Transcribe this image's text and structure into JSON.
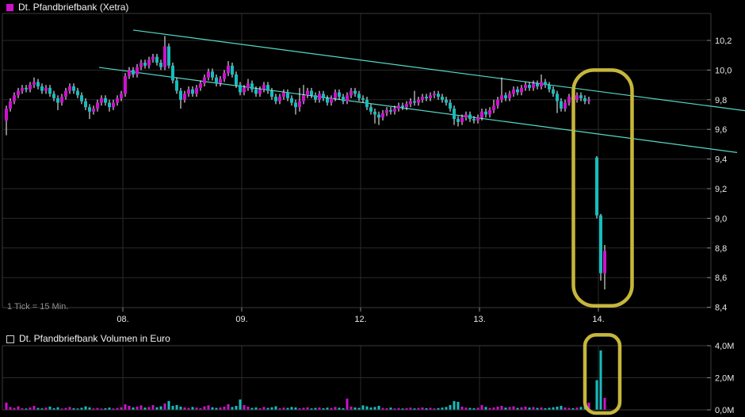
{
  "price_panel": {
    "title": "Dt. Pfandbriefbank (Xetra)",
    "footnote": "1 Tick = 15 Min.",
    "y_axis_labels": [
      "10,2",
      "10,0",
      "9,8",
      "9,6",
      "9,4",
      "9,2",
      "9,0",
      "8,8",
      "8,6",
      "8,4"
    ],
    "x_axis_labels": [
      "08.",
      "09.",
      "12.",
      "13.",
      "14."
    ]
  },
  "volume_panel": {
    "title": "Dt. Pfandbriefbank Volumen in Euro",
    "y_axis_labels": [
      "4,0M",
      "2,0M",
      "0,0M"
    ]
  },
  "colors": {
    "background": "#000000",
    "up": "#cf10cf",
    "down": "#16bdbd",
    "wick": "#ffffff",
    "grid": "#2a2a2a",
    "border": "#3a3a3a",
    "tick": "#888888",
    "axis_text": "#e8e8e8",
    "muted_text": "#8f8f8f",
    "trendline": "#55d8c8",
    "highlight": "#c6b63c"
  },
  "chart_data": {
    "type": "candlestick_with_volume",
    "title": "Dt. Pfandbriefbank (Xetra)",
    "interval": "1 Tick = 15 Min.",
    "x_day_labels": [
      "08.",
      "09.",
      "12.",
      "13.",
      "14."
    ],
    "price_axis": {
      "min": 8.4,
      "max": 10.38,
      "tick_step": 0.2,
      "tick_values": [
        10.2,
        10.0,
        9.8,
        9.6,
        9.4,
        9.2,
        9.0,
        8.8,
        8.6,
        8.4
      ]
    },
    "volume_axis": {
      "min": 0.0,
      "max": 4.0,
      "tick_values": [
        4.0,
        2.0,
        0.0
      ],
      "unit": "M"
    },
    "trend_channel": {
      "upper": {
        "i1": 32.0,
        "p1": 10.27,
        "i2": 186.4,
        "p2": 9.726
      },
      "lower": {
        "i1": 23.4,
        "p1": 10.018,
        "i2": 184.4,
        "p2": 9.444
      }
    },
    "annotations": [
      {
        "name": "crash-highlight-price",
        "panel": "price",
        "i1": 143.1,
        "i2": 157.9,
        "p1": 10.0,
        "p2": 8.41
      },
      {
        "name": "crash-highlight-volume",
        "panel": "volume",
        "i1": 146.0,
        "i2": 154.8,
        "v1": 4.67,
        "v2": -0.2
      }
    ],
    "candles_format": [
      "open",
      "high",
      "low",
      "close",
      "volume_millions"
    ],
    "candles": [
      [
        9.66,
        9.76,
        9.56,
        9.74,
        0.45
      ],
      [
        9.74,
        9.81,
        9.72,
        9.79,
        0.18
      ],
      [
        9.79,
        9.85,
        9.77,
        9.83,
        0.12
      ],
      [
        9.83,
        9.88,
        9.81,
        9.86,
        0.22
      ],
      [
        9.86,
        9.9,
        9.84,
        9.88,
        0.1
      ],
      [
        9.88,
        9.9,
        9.85,
        9.87,
        0.08
      ],
      [
        9.87,
        9.92,
        9.85,
        9.9,
        0.15
      ],
      [
        9.9,
        9.95,
        9.88,
        9.92,
        0.25
      ],
      [
        9.92,
        9.94,
        9.87,
        9.89,
        0.12
      ],
      [
        9.89,
        9.91,
        9.84,
        9.86,
        0.09
      ],
      [
        9.86,
        9.9,
        9.84,
        9.88,
        0.14
      ],
      [
        9.88,
        9.9,
        9.82,
        9.84,
        0.2
      ],
      [
        9.84,
        9.86,
        9.79,
        9.81,
        0.1
      ],
      [
        9.81,
        9.83,
        9.73,
        9.78,
        0.16
      ],
      [
        9.78,
        9.84,
        9.76,
        9.82,
        0.08
      ],
      [
        9.82,
        9.88,
        9.8,
        9.86,
        0.12
      ],
      [
        9.86,
        9.91,
        9.84,
        9.89,
        0.18
      ],
      [
        9.89,
        9.91,
        9.84,
        9.86,
        0.1
      ],
      [
        9.86,
        9.88,
        9.81,
        9.83,
        0.07
      ],
      [
        9.83,
        9.85,
        9.77,
        9.79,
        0.13
      ],
      [
        9.79,
        9.81,
        9.73,
        9.75,
        0.22
      ],
      [
        9.75,
        9.77,
        9.67,
        9.72,
        0.15
      ],
      [
        9.72,
        9.76,
        9.7,
        9.74,
        0.09
      ],
      [
        9.74,
        9.8,
        9.72,
        9.78,
        0.12
      ],
      [
        9.78,
        9.83,
        9.76,
        9.81,
        0.08
      ],
      [
        9.81,
        9.83,
        9.76,
        9.78,
        0.1
      ],
      [
        9.78,
        9.8,
        9.72,
        9.75,
        0.14
      ],
      [
        9.75,
        9.8,
        9.73,
        9.78,
        0.09
      ],
      [
        9.78,
        9.83,
        9.76,
        9.81,
        0.12
      ],
      [
        9.81,
        9.86,
        9.79,
        9.84,
        0.16
      ],
      [
        9.84,
        9.98,
        9.82,
        9.96,
        0.35
      ],
      [
        9.96,
        10.02,
        9.94,
        10.0,
        0.25
      ],
      [
        10.0,
        10.02,
        9.95,
        9.97,
        0.15
      ],
      [
        9.97,
        10.04,
        9.95,
        10.02,
        0.2
      ],
      [
        10.02,
        10.07,
        10.0,
        10.05,
        0.28
      ],
      [
        10.05,
        10.07,
        10.01,
        10.03,
        0.14
      ],
      [
        10.03,
        10.09,
        10.01,
        10.07,
        0.18
      ],
      [
        10.07,
        10.11,
        10.05,
        10.09,
        0.3
      ],
      [
        10.09,
        10.11,
        10.03,
        10.05,
        0.16
      ],
      [
        10.05,
        10.07,
        10.0,
        10.02,
        0.22
      ],
      [
        10.02,
        10.23,
        10.0,
        10.16,
        0.4
      ],
      [
        10.16,
        10.18,
        10.01,
        10.03,
        0.55
      ],
      [
        10.03,
        10.05,
        9.91,
        9.93,
        0.25
      ],
      [
        9.93,
        9.95,
        9.84,
        9.86,
        0.3
      ],
      [
        9.86,
        9.88,
        9.74,
        9.8,
        0.2
      ],
      [
        9.8,
        9.86,
        9.78,
        9.84,
        0.15
      ],
      [
        9.84,
        9.89,
        9.82,
        9.87,
        0.12
      ],
      [
        9.87,
        9.89,
        9.82,
        9.84,
        0.18
      ],
      [
        9.84,
        9.9,
        9.82,
        9.88,
        0.14
      ],
      [
        9.88,
        9.93,
        9.86,
        9.91,
        0.1
      ],
      [
        9.91,
        9.97,
        9.89,
        9.95,
        0.22
      ],
      [
        9.95,
        10.01,
        9.93,
        9.99,
        0.28
      ],
      [
        9.99,
        10.01,
        9.93,
        9.95,
        0.16
      ],
      [
        9.95,
        9.97,
        9.89,
        9.91,
        0.12
      ],
      [
        9.91,
        9.96,
        9.89,
        9.94,
        0.15
      ],
      [
        9.94,
        10.0,
        9.92,
        9.98,
        0.2
      ],
      [
        9.98,
        10.06,
        9.96,
        10.03,
        0.35
      ],
      [
        10.03,
        10.05,
        9.95,
        9.97,
        0.18
      ],
      [
        9.97,
        9.99,
        9.88,
        9.9,
        0.25
      ],
      [
        9.9,
        9.92,
        9.83,
        9.85,
        0.65
      ],
      [
        9.85,
        9.9,
        9.83,
        9.88,
        0.3
      ],
      [
        9.88,
        9.94,
        9.86,
        9.91,
        0.2
      ],
      [
        9.91,
        9.93,
        9.85,
        9.87,
        0.12
      ],
      [
        9.87,
        9.89,
        9.82,
        9.84,
        0.15
      ],
      [
        9.84,
        9.89,
        9.82,
        9.87,
        0.1
      ],
      [
        9.87,
        9.92,
        9.85,
        9.9,
        0.18
      ],
      [
        9.9,
        9.92,
        9.84,
        9.86,
        0.12
      ],
      [
        9.86,
        9.88,
        9.8,
        9.82,
        0.16
      ],
      [
        9.82,
        9.84,
        9.77,
        9.79,
        0.22
      ],
      [
        9.79,
        9.84,
        9.77,
        9.82,
        0.1
      ],
      [
        9.82,
        9.87,
        9.8,
        9.85,
        0.14
      ],
      [
        9.85,
        9.87,
        9.79,
        9.81,
        0.12
      ],
      [
        9.81,
        9.83,
        9.76,
        9.78,
        0.18
      ],
      [
        9.78,
        9.8,
        9.7,
        9.75,
        0.15
      ],
      [
        9.75,
        9.88,
        9.72,
        9.79,
        0.1
      ],
      [
        9.79,
        9.9,
        9.77,
        9.83,
        0.13
      ],
      [
        9.83,
        9.88,
        9.81,
        9.86,
        0.16
      ],
      [
        9.86,
        9.88,
        9.81,
        9.83,
        0.09
      ],
      [
        9.83,
        9.85,
        9.78,
        9.8,
        0.12
      ],
      [
        9.8,
        9.86,
        9.78,
        9.84,
        0.15
      ],
      [
        9.84,
        9.86,
        9.79,
        9.81,
        0.1
      ],
      [
        9.81,
        9.83,
        9.76,
        9.78,
        0.14
      ],
      [
        9.78,
        9.83,
        9.76,
        9.81,
        0.12
      ],
      [
        9.81,
        9.87,
        9.79,
        9.85,
        0.18
      ],
      [
        9.85,
        9.87,
        9.8,
        9.82,
        0.13
      ],
      [
        9.82,
        9.84,
        9.77,
        9.79,
        0.1
      ],
      [
        9.79,
        9.85,
        9.77,
        9.83,
        0.7
      ],
      [
        9.83,
        9.88,
        9.81,
        9.86,
        0.2
      ],
      [
        9.86,
        9.88,
        9.82,
        9.84,
        0.15
      ],
      [
        9.84,
        9.86,
        9.79,
        9.81,
        0.12
      ],
      [
        9.81,
        9.83,
        9.78,
        9.8,
        0.28
      ],
      [
        9.8,
        9.82,
        9.73,
        9.75,
        0.22
      ],
      [
        9.75,
        9.77,
        9.7,
        9.72,
        0.15
      ],
      [
        9.72,
        9.74,
        9.64,
        9.7,
        0.18
      ],
      [
        9.7,
        9.72,
        9.63,
        9.68,
        0.25
      ],
      [
        9.68,
        9.73,
        9.66,
        9.71,
        0.12
      ],
      [
        9.71,
        9.75,
        9.69,
        9.73,
        0.1
      ],
      [
        9.73,
        9.75,
        9.7,
        9.72,
        0.14
      ],
      [
        9.72,
        9.76,
        9.7,
        9.74,
        0.09
      ],
      [
        9.74,
        9.78,
        9.72,
        9.76,
        0.12
      ],
      [
        9.76,
        9.78,
        9.73,
        9.75,
        0.08
      ],
      [
        9.75,
        9.79,
        9.73,
        9.77,
        0.11
      ],
      [
        9.77,
        9.81,
        9.75,
        9.79,
        0.14
      ],
      [
        9.79,
        9.86,
        9.76,
        9.78,
        0.09
      ],
      [
        9.78,
        9.82,
        9.76,
        9.8,
        0.12
      ],
      [
        9.8,
        9.84,
        9.78,
        9.82,
        0.15
      ],
      [
        9.82,
        9.84,
        9.79,
        9.81,
        0.1
      ],
      [
        9.81,
        9.85,
        9.79,
        9.83,
        0.13
      ],
      [
        9.83,
        9.86,
        9.81,
        9.84,
        0.09
      ],
      [
        9.84,
        9.86,
        9.8,
        9.82,
        0.11
      ],
      [
        9.82,
        9.84,
        9.78,
        9.8,
        0.14
      ],
      [
        9.8,
        9.82,
        9.76,
        9.78,
        0.18
      ],
      [
        9.78,
        9.8,
        9.72,
        9.74,
        0.3
      ],
      [
        9.74,
        9.76,
        9.63,
        9.67,
        0.55
      ],
      [
        9.67,
        9.69,
        9.62,
        9.65,
        0.5
      ],
      [
        9.65,
        9.7,
        9.63,
        9.68,
        0.2
      ],
      [
        9.68,
        9.72,
        9.66,
        9.7,
        0.14
      ],
      [
        9.7,
        9.72,
        9.65,
        9.67,
        0.12
      ],
      [
        9.67,
        9.69,
        9.64,
        9.66,
        0.1
      ],
      [
        9.66,
        9.7,
        9.64,
        9.68,
        0.13
      ],
      [
        9.68,
        9.74,
        9.66,
        9.72,
        0.3
      ],
      [
        9.72,
        9.74,
        9.68,
        9.7,
        0.18
      ],
      [
        9.7,
        9.75,
        9.68,
        9.73,
        0.12
      ],
      [
        9.73,
        9.8,
        9.71,
        9.76,
        0.15
      ],
      [
        9.76,
        9.82,
        9.74,
        9.8,
        0.2
      ],
      [
        9.8,
        9.95,
        9.78,
        9.83,
        0.25
      ],
      [
        9.83,
        9.85,
        9.79,
        9.81,
        0.14
      ],
      [
        9.81,
        9.86,
        9.79,
        9.84,
        0.18
      ],
      [
        9.84,
        9.89,
        9.82,
        9.87,
        0.22
      ],
      [
        9.87,
        9.89,
        9.83,
        9.85,
        0.12
      ],
      [
        9.85,
        9.9,
        9.83,
        9.88,
        0.16
      ],
      [
        9.88,
        9.92,
        9.86,
        9.9,
        0.2
      ],
      [
        9.9,
        9.92,
        9.86,
        9.88,
        0.14
      ],
      [
        9.88,
        9.93,
        9.86,
        9.91,
        0.18
      ],
      [
        9.91,
        9.93,
        9.87,
        9.89,
        0.12
      ],
      [
        9.89,
        9.97,
        9.87,
        9.92,
        0.15
      ],
      [
        9.92,
        9.94,
        9.88,
        9.9,
        0.1
      ],
      [
        9.9,
        9.92,
        9.85,
        9.87,
        0.13
      ],
      [
        9.87,
        9.89,
        9.82,
        9.84,
        0.16
      ],
      [
        9.84,
        9.86,
        9.71,
        9.79,
        0.2
      ],
      [
        9.79,
        9.81,
        9.72,
        9.74,
        0.25
      ],
      [
        9.74,
        9.8,
        9.72,
        9.78,
        0.15
      ],
      [
        9.78,
        9.84,
        9.76,
        9.82,
        0.12
      ],
      [
        9.82,
        9.84,
        9.78,
        9.8,
        0.1
      ],
      [
        9.8,
        9.85,
        9.78,
        9.83,
        0.14
      ],
      [
        9.83,
        9.85,
        9.79,
        9.81,
        0.18
      ],
      [
        9.81,
        9.83,
        9.77,
        9.79,
        0.3
      ],
      [
        9.79,
        9.82,
        9.77,
        9.8,
        0.45
      ],
      null,
      [
        9.41,
        9.42,
        9.0,
        9.02,
        1.85
      ],
      [
        9.02,
        9.03,
        8.58,
        8.63,
        3.7
      ],
      [
        8.63,
        8.82,
        8.52,
        8.78,
        0.75
      ]
    ]
  }
}
